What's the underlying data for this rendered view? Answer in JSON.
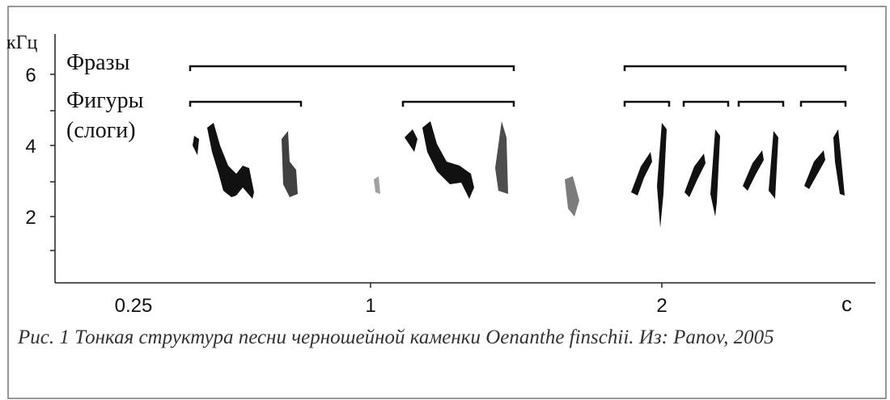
{
  "figure": {
    "y_unit": "кГц",
    "yticks": [
      6,
      4,
      2
    ],
    "xticks": [
      "0.25",
      "1",
      "2"
    ],
    "x_unit": "с",
    "row_labels": {
      "phrases": "Фразы",
      "figures": "Фигуры",
      "syllables": "(слоги)"
    }
  },
  "caption": "Рис. 1  Тонкая структура песни черношейной каменки Oenanthe finschii.  Из: Panov, 2005"
}
